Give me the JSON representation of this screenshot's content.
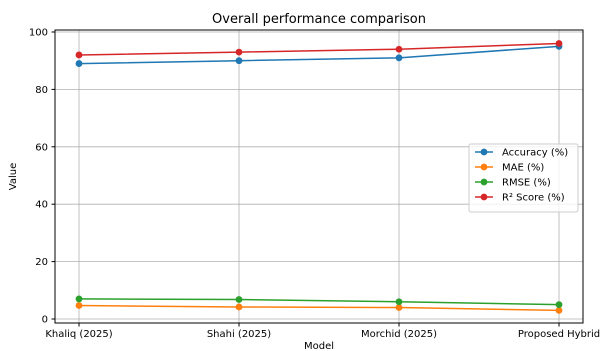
{
  "chart_data": {
    "type": "line",
    "title": "Overall performance comparison",
    "xlabel": "Model",
    "ylabel": "Value",
    "categories": [
      "Khaliq (2025)",
      "Shahi (2025)",
      "Morchid (2025)",
      "Proposed Hybrid"
    ],
    "ylim": [
      0,
      100
    ],
    "yticks": [
      0,
      20,
      40,
      60,
      80,
      100
    ],
    "grid": true,
    "legend_position": "center-right",
    "series": [
      {
        "name": "Accuracy (%)",
        "color": "#1f77b4",
        "values": [
          89,
          90,
          91,
          95
        ]
      },
      {
        "name": "MAE (%)",
        "color": "#ff7f0e",
        "values": [
          4.7,
          4.2,
          4.0,
          3.0
        ]
      },
      {
        "name": "RMSE (%)",
        "color": "#2ca02c",
        "values": [
          7.0,
          6.8,
          6.0,
          5.0
        ]
      },
      {
        "name": "R² Score (%)",
        "color": "#d62728",
        "values": [
          92,
          93,
          94,
          96
        ]
      }
    ]
  }
}
